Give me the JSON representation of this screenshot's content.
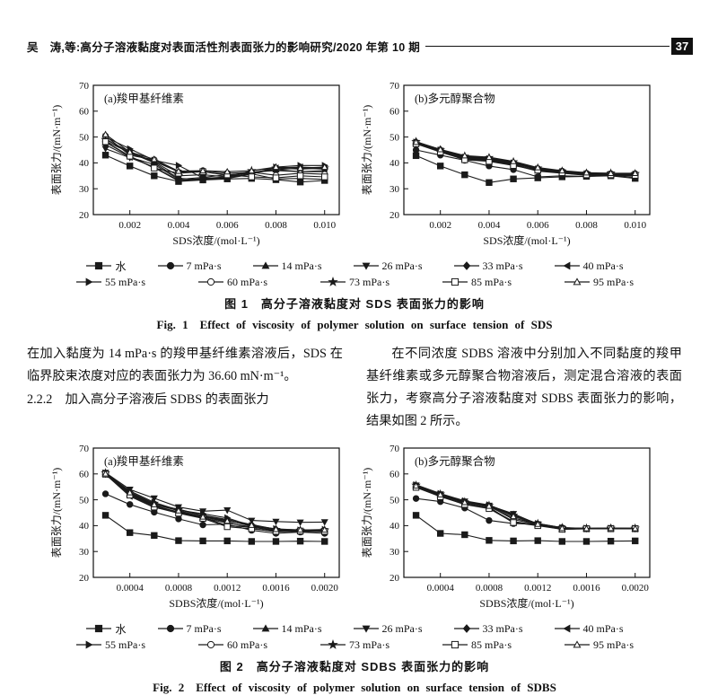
{
  "header": {
    "title": "吴　涛,等:高分子溶液黏度对表面活性剂表面张力的影响研究/2020 年第 10 期",
    "page_number": "37"
  },
  "body_text": {
    "left_paragraph": "在加入黏度为 14 mPa·s 的羧甲基纤维素溶液后，SDS 在临界胶束浓度对应的表面张力为 36.60 mN·m⁻¹。",
    "left_heading": "2.2.2　加入高分子溶液后 SDBS 的表面张力",
    "right_paragraph": "在不同浓度 SDBS 溶液中分别加入不同黏度的羧甲基纤维素或多元醇聚合物溶液后，测定混合溶液的表面张力，考察高分子溶液黏度对 SDBS 表面张力的影响，结果如图 2 所示。"
  },
  "figure1": {
    "caption_zh": "图 1　高分子溶液黏度对 SDS 表面张力的影响",
    "caption_en": "Fig. 1　Effect of viscosity of polymer solution on surface tension of SDS"
  },
  "figure2": {
    "caption_zh": "图 2　高分子溶液黏度对 SDBS 表面张力的影响",
    "caption_en": "Fig. 2　Effect of viscosity of polymer solution on surface tension of SDBS"
  },
  "chart_data": {
    "type": "line",
    "line_color": "#1a1a1a",
    "legend": [
      {
        "label": "水",
        "marker": "square",
        "filled": true
      },
      {
        "label": "7 mPa·s",
        "marker": "circle",
        "filled": true
      },
      {
        "label": "14 mPa·s",
        "marker": "triangle-up",
        "filled": true
      },
      {
        "label": "26 mPa·s",
        "marker": "triangle-down",
        "filled": true
      },
      {
        "label": "33 mPa·s",
        "marker": "diamond",
        "filled": true
      },
      {
        "label": "40 mPa·s",
        "marker": "triangle-left",
        "filled": true
      },
      {
        "label": "55 mPa·s",
        "marker": "triangle-right",
        "filled": true
      },
      {
        "label": "60 mPa·s",
        "marker": "circle",
        "filled": false
      },
      {
        "label": "73 mPa·s",
        "marker": "star",
        "filled": true
      },
      {
        "label": "85 mPa·s",
        "marker": "square",
        "filled": false
      },
      {
        "label": "95 mPa·s",
        "marker": "triangle-up",
        "filled": false
      }
    ],
    "legend_rows": [
      6,
      5
    ],
    "charts": [
      {
        "panel_label": "(a)羧甲基纤维素",
        "xlabel": "SDS浓度/(mol·L⁻¹)",
        "ylabel": "表面张力/(mN·m⁻¹)",
        "xlim": [
          0.0005,
          0.0106
        ],
        "ylim": [
          20,
          70
        ],
        "yticks": [
          20,
          30,
          40,
          50,
          60,
          70
        ],
        "xtick_values": [
          0.002,
          0.004,
          0.006,
          0.008,
          0.01
        ],
        "xtick_labels": [
          "0.002",
          "0.004",
          "0.006",
          "0.008",
          "0.010"
        ],
        "x": [
          0.001,
          0.002,
          0.003,
          0.004,
          0.005,
          0.006,
          0.007,
          0.008,
          0.009,
          0.01
        ],
        "series": [
          [
            43.0,
            38.8,
            35.0,
            32.8,
            33.4,
            33.8,
            34.0,
            33.5,
            32.6,
            33.2
          ],
          [
            48.0,
            42.5,
            38.2,
            33.0,
            33.6,
            34.3,
            35.8,
            33.8,
            34.0,
            33.6
          ],
          [
            49.4,
            43.6,
            40.6,
            36.6,
            36.6,
            35.2,
            36.4,
            37.4,
            36.6,
            36.6
          ],
          [
            45.5,
            42.0,
            38.4,
            33.2,
            34.0,
            34.6,
            36.4,
            37.0,
            36.6,
            37.0
          ],
          [
            48.4,
            44.0,
            40.0,
            34.0,
            33.6,
            34.2,
            36.0,
            37.4,
            38.0,
            37.6
          ],
          [
            47.0,
            42.2,
            39.4,
            33.6,
            34.4,
            35.4,
            36.0,
            38.0,
            38.4,
            38.0
          ],
          [
            50.0,
            45.4,
            41.0,
            39.0,
            34.2,
            34.0,
            35.6,
            38.4,
            39.0,
            39.0
          ],
          [
            50.4,
            43.0,
            41.2,
            36.4,
            37.0,
            36.0,
            36.4,
            35.2,
            36.0,
            35.6
          ],
          [
            49.0,
            44.4,
            40.4,
            35.0,
            35.4,
            34.6,
            37.0,
            38.0,
            37.6,
            38.0
          ],
          [
            48.2,
            42.6,
            38.0,
            36.0,
            36.6,
            35.4,
            34.6,
            34.2,
            35.0,
            34.6
          ],
          [
            51.0,
            44.2,
            41.4,
            36.8,
            37.0,
            36.6,
            37.0,
            38.4,
            38.0,
            38.4
          ]
        ]
      },
      {
        "panel_label": "(b)多元醇聚合物",
        "xlabel": "SDS浓度/(mol·L⁻¹)",
        "ylabel": "表面张力/(mN·m⁻¹)",
        "xlim": [
          0.0005,
          0.0106
        ],
        "ylim": [
          20,
          70
        ],
        "yticks": [
          20,
          30,
          40,
          50,
          60,
          70
        ],
        "xtick_values": [
          0.002,
          0.004,
          0.006,
          0.008,
          0.01
        ],
        "xtick_labels": [
          "0.002",
          "0.004",
          "0.006",
          "0.008",
          "0.010"
        ],
        "x": [
          0.001,
          0.002,
          0.003,
          0.004,
          0.005,
          0.006,
          0.007,
          0.008,
          0.009,
          0.01
        ],
        "series": [
          [
            42.8,
            38.8,
            35.4,
            32.4,
            33.8,
            34.2,
            34.6,
            34.8,
            35.0,
            34.0
          ],
          [
            45.0,
            43.0,
            41.0,
            38.8,
            37.4,
            34.6,
            35.0,
            34.8,
            35.2,
            34.4
          ],
          [
            47.6,
            44.6,
            41.6,
            41.0,
            39.4,
            37.0,
            36.2,
            35.4,
            35.4,
            35.2
          ],
          [
            47.8,
            44.8,
            42.0,
            41.4,
            39.8,
            37.4,
            36.4,
            35.6,
            35.6,
            35.4
          ],
          [
            48.2,
            45.2,
            42.4,
            41.8,
            40.2,
            37.8,
            36.6,
            35.8,
            35.8,
            35.6
          ],
          [
            47.4,
            44.4,
            41.4,
            40.8,
            39.2,
            36.8,
            36.0,
            35.2,
            35.2,
            35.0
          ],
          [
            48.0,
            45.0,
            42.2,
            41.6,
            40.0,
            37.6,
            36.6,
            35.8,
            35.6,
            35.6
          ],
          [
            47.6,
            44.8,
            41.8,
            41.2,
            39.6,
            37.8,
            36.8,
            36.0,
            35.8,
            35.8
          ],
          [
            48.2,
            45.0,
            42.6,
            42.0,
            40.4,
            38.0,
            36.8,
            36.0,
            36.0,
            35.8
          ],
          [
            47.4,
            44.2,
            41.2,
            40.6,
            39.0,
            37.2,
            36.2,
            35.4,
            35.4,
            35.2
          ],
          [
            48.0,
            45.2,
            42.8,
            42.2,
            40.6,
            38.2,
            37.0,
            36.2,
            36.0,
            36.0
          ]
        ]
      },
      {
        "panel_label": "(a)羧甲基纤维素",
        "xlabel": "SDBS浓度/(mol·L⁻¹)",
        "ylabel": "表面张力/(mN·m⁻¹)",
        "xlim": [
          0.0001,
          0.00212
        ],
        "ylim": [
          20,
          70
        ],
        "yticks": [
          20,
          30,
          40,
          50,
          60,
          70
        ],
        "xtick_values": [
          0.0004,
          0.0008,
          0.0012,
          0.0016,
          0.002
        ],
        "xtick_labels": [
          "0.0004",
          "0.0008",
          "0.0012",
          "0.0016",
          "0.0020"
        ],
        "x": [
          0.0002,
          0.0004,
          0.0006,
          0.0008,
          0.001,
          0.0012,
          0.0014,
          0.0016,
          0.0018,
          0.002
        ],
        "series": [
          [
            44.0,
            37.3,
            36.2,
            34.2,
            34.1,
            34.1,
            33.9,
            33.9,
            34.0,
            33.9
          ],
          [
            52.3,
            48.2,
            45.2,
            42.6,
            40.3,
            40.6,
            38.2,
            37.0,
            37.5,
            37.0
          ],
          [
            60.2,
            52.0,
            47.6,
            45.0,
            43.0,
            41.0,
            39.5,
            38.0,
            38.4,
            38.0
          ],
          [
            60.5,
            54.0,
            50.6,
            47.2,
            45.6,
            46.0,
            42.0,
            41.6,
            41.3,
            41.4
          ],
          [
            60.0,
            52.6,
            48.0,
            46.4,
            44.0,
            42.4,
            40.4,
            38.6,
            38.0,
            38.2
          ],
          [
            59.8,
            51.4,
            47.0,
            45.4,
            43.4,
            41.4,
            39.0,
            37.6,
            37.8,
            37.6
          ],
          [
            60.3,
            53.4,
            49.0,
            46.0,
            44.6,
            43.0,
            40.0,
            38.8,
            38.3,
            38.5
          ],
          [
            60.0,
            52.2,
            47.8,
            45.2,
            43.2,
            40.0,
            39.4,
            38.2,
            38.0,
            38.0
          ],
          [
            60.4,
            53.0,
            48.6,
            46.2,
            43.8,
            42.0,
            39.8,
            38.5,
            38.2,
            38.3
          ],
          [
            59.9,
            51.8,
            47.2,
            44.8,
            42.8,
            39.6,
            38.8,
            37.8,
            37.9,
            37.8
          ],
          [
            60.1,
            52.8,
            48.2,
            45.8,
            43.4,
            41.8,
            40.2,
            38.6,
            38.4,
            38.4
          ]
        ]
      },
      {
        "panel_label": "(b)多元醇聚合物",
        "xlabel": "SDBS浓度/(mol·L⁻¹)",
        "ylabel": "表面张力/(mN·m⁻¹)",
        "xlim": [
          0.0001,
          0.00212
        ],
        "ylim": [
          20,
          70
        ],
        "yticks": [
          20,
          30,
          40,
          50,
          60,
          70
        ],
        "xtick_values": [
          0.0004,
          0.0008,
          0.0012,
          0.0016,
          0.002
        ],
        "xtick_labels": [
          "0.0004",
          "0.0008",
          "0.0012",
          "0.0016",
          "0.0020"
        ],
        "x": [
          0.0002,
          0.0004,
          0.0006,
          0.0008,
          0.001,
          0.0012,
          0.0014,
          0.0016,
          0.0018,
          0.002
        ],
        "series": [
          [
            44.0,
            37.0,
            36.5,
            34.3,
            34.1,
            34.2,
            33.9,
            33.9,
            34.0,
            34.1
          ],
          [
            50.5,
            49.3,
            46.8,
            42.0,
            40.8,
            40.6,
            39.2,
            38.9,
            39.0,
            38.9
          ],
          [
            55.2,
            51.6,
            48.8,
            47.2,
            41.0,
            40.4,
            38.6,
            38.9,
            39.0,
            38.9
          ],
          [
            55.6,
            52.2,
            49.4,
            47.8,
            44.6,
            40.6,
            39.0,
            38.9,
            39.0,
            39.0
          ],
          [
            55.4,
            51.8,
            49.0,
            47.4,
            43.0,
            40.6,
            38.8,
            38.9,
            39.0,
            38.9
          ],
          [
            55.0,
            51.4,
            48.4,
            46.8,
            41.6,
            40.2,
            38.6,
            38.8,
            38.9,
            38.8
          ],
          [
            55.8,
            52.4,
            49.6,
            48.0,
            44.2,
            40.8,
            39.2,
            39.0,
            39.0,
            39.0
          ],
          [
            55.2,
            52.0,
            48.8,
            47.6,
            42.4,
            40.4,
            39.0,
            38.8,
            39.0,
            38.9
          ],
          [
            55.6,
            52.2,
            49.2,
            47.8,
            44.0,
            40.8,
            39.2,
            39.0,
            39.0,
            39.0
          ],
          [
            54.8,
            51.2,
            48.2,
            46.6,
            41.2,
            40.0,
            38.6,
            38.8,
            38.8,
            38.8
          ],
          [
            55.4,
            52.0,
            49.0,
            47.6,
            43.6,
            40.6,
            39.0,
            38.9,
            39.0,
            38.9
          ]
        ]
      }
    ]
  }
}
